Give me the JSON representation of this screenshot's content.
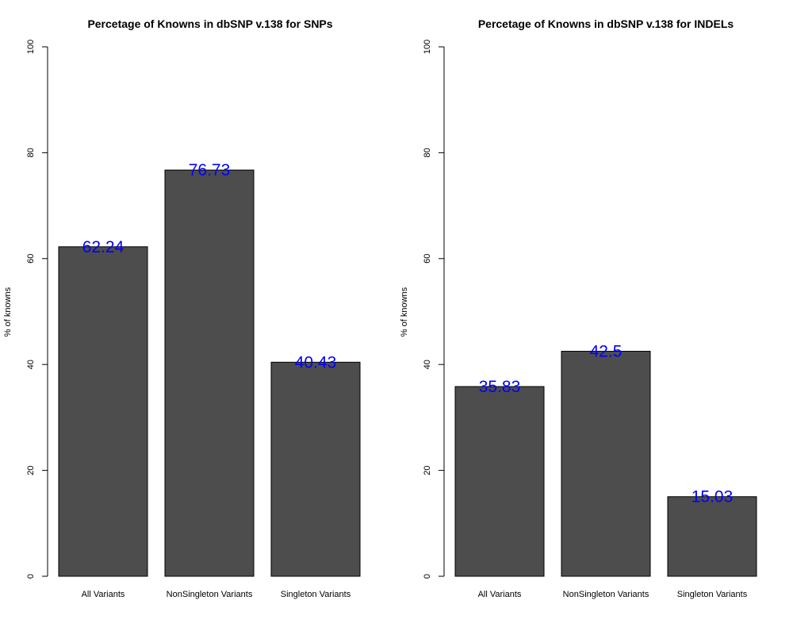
{
  "colors": {
    "bar_fill": "#4d4d4d",
    "bar_stroke": "#000000",
    "value_label": "#0000ff",
    "axis": "#000000"
  },
  "chart_data": [
    {
      "type": "bar",
      "title": "Percetage of Knowns in dbSNP v.138 for SNPs",
      "xlabel": "",
      "ylabel": "% of knowns",
      "ylim": [
        0,
        100
      ],
      "yticks": [
        0,
        20,
        40,
        60,
        80,
        100
      ],
      "categories": [
        "All Variants",
        "NonSingleton Variants",
        "Singleton Variants"
      ],
      "values": [
        62.24,
        76.73,
        40.43
      ],
      "value_labels": [
        "62.24",
        "76.73",
        "40.43"
      ],
      "grid": false
    },
    {
      "type": "bar",
      "title": "Percetage of Knowns in dbSNP v.138 for INDELs",
      "xlabel": "",
      "ylabel": "% of knowns",
      "ylim": [
        0,
        100
      ],
      "yticks": [
        0,
        20,
        40,
        60,
        80,
        100
      ],
      "categories": [
        "All Variants",
        "NonSingleton Variants",
        "Singleton Variants"
      ],
      "values": [
        35.83,
        42.5,
        15.03
      ],
      "value_labels": [
        "35.83",
        "42.5",
        "15.03"
      ],
      "grid": false
    }
  ]
}
